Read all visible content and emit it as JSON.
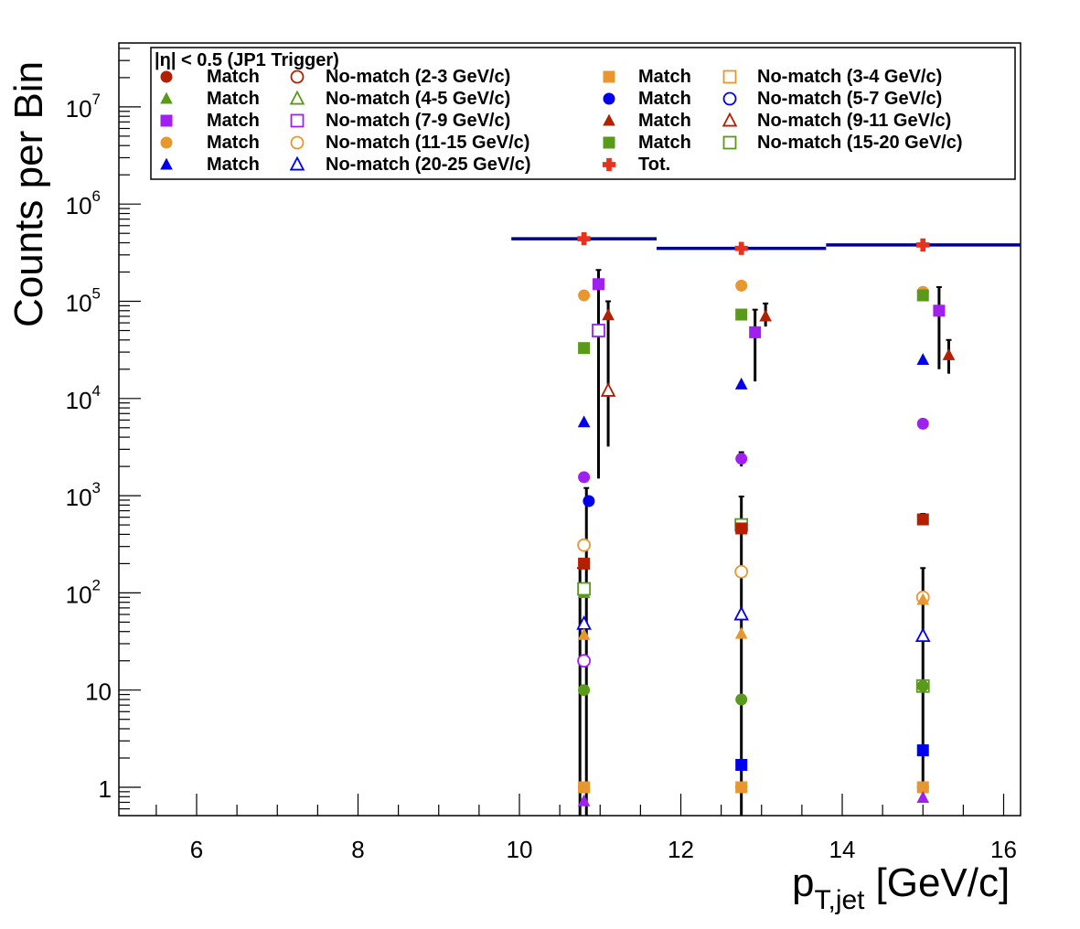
{
  "chart_data": {
    "type": "scatter",
    "title": "",
    "xlabel": "p",
    "xlabel_sub": "T,jet",
    "xlabel_unit": "[GeV/c]",
    "ylabel": "Counts per Bin",
    "xlim": [
      5,
      16.3
    ],
    "ylim": [
      0.5,
      50000000
    ],
    "yscale": "log",
    "x_ticks": [
      6,
      8,
      10,
      12,
      14,
      16
    ],
    "x_tick_labels": [
      "6",
      "8",
      "10",
      "12",
      "14",
      "16"
    ],
    "y_tick_labels": [
      {
        "base": "1",
        "exp": ""
      },
      {
        "base": "10",
        "exp": ""
      },
      {
        "base": "10",
        "exp": "2"
      },
      {
        "base": "10",
        "exp": "3"
      },
      {
        "base": "10",
        "exp": "4"
      },
      {
        "base": "10",
        "exp": "5"
      },
      {
        "base": "10",
        "exp": "6"
      },
      {
        "base": "10",
        "exp": "7"
      }
    ],
    "legend_header": "|η| < 0.5 (JP1 Trigger)",
    "legend_placement": "top",
    "total_hist": {
      "color": "#00008b",
      "bins": [
        {
          "x0": 9.9,
          "x1": 11.7,
          "y": 440000
        },
        {
          "x0": 11.7,
          "x1": 13.8,
          "y": 350000
        },
        {
          "x0": 13.8,
          "x1": 16.3,
          "y": 380000
        }
      ]
    },
    "series": [
      {
        "name": "Match",
        "marker": "circle",
        "filled": true,
        "color": "#b22000",
        "points": [
          {
            "x": 10.8,
            "y": 1
          },
          {
            "x": 12.75,
            "y": 1
          },
          {
            "x": 15.0,
            "y": 1
          }
        ]
      },
      {
        "name": "No-match (2-3 GeV/c)",
        "marker": "circle",
        "filled": false,
        "color": "#b22000",
        "points": []
      },
      {
        "name": "Match",
        "marker": "square",
        "filled": true,
        "color": "#e8962e",
        "points": [
          {
            "x": 10.8,
            "y": 1
          },
          {
            "x": 12.75,
            "y": 1
          },
          {
            "x": 15.0,
            "y": 1
          }
        ]
      },
      {
        "name": "No-match (3-4 GeV/c)",
        "marker": "square",
        "filled": false,
        "color": "#e8962e",
        "points": []
      },
      {
        "name": "Match",
        "marker": "triangle",
        "filled": true,
        "color": "#5a9a1a",
        "points": [
          {
            "x": 10.8,
            "y": 100
          }
        ]
      },
      {
        "name": "No-match (4-5 GeV/c)",
        "marker": "triangle",
        "filled": false,
        "color": "#5a9a1a",
        "points": []
      },
      {
        "name": "Match",
        "marker": "circle",
        "filled": true,
        "color": "#0000ee",
        "points": [
          {
            "x": 10.86,
            "y": 880
          }
        ]
      },
      {
        "name": "No-match (5-7 GeV/c)",
        "marker": "circle",
        "filled": false,
        "color": "#0000ee",
        "points": []
      },
      {
        "name": "Match",
        "marker": "square",
        "filled": true,
        "color": "#a020f0",
        "points": [
          {
            "x": 10.98,
            "y": 150000
          },
          {
            "x": 12.92,
            "y": 48000
          },
          {
            "x": 15.2,
            "y": 80000
          }
        ]
      },
      {
        "name": "No-match (7-9 GeV/c)",
        "marker": "square",
        "filled": false,
        "color": "#a020f0",
        "points": [
          {
            "x": 10.98,
            "y": 50000
          }
        ]
      },
      {
        "name": "Match",
        "marker": "triangle",
        "filled": true,
        "color": "#b22000",
        "points": [
          {
            "x": 11.1,
            "y": 72000
          },
          {
            "x": 13.05,
            "y": 70000
          },
          {
            "x": 15.32,
            "y": 28000
          }
        ]
      },
      {
        "name": "No-match (9-11 GeV/c)",
        "marker": "triangle",
        "filled": false,
        "color": "#b22000",
        "points": [
          {
            "x": 11.1,
            "y": 12000
          }
        ]
      },
      {
        "name": "Match",
        "marker": "circle",
        "filled": true,
        "color": "#e8962e",
        "points": [
          {
            "x": 10.8,
            "y": 115000
          },
          {
            "x": 12.75,
            "y": 145000
          },
          {
            "x": 15.0,
            "y": 125000
          }
        ]
      },
      {
        "name": "No-match (11-15 GeV/c)",
        "marker": "circle",
        "filled": false,
        "color": "#e8962e",
        "points": [
          {
            "x": 10.8,
            "y": 310
          },
          {
            "x": 12.75,
            "y": 165
          },
          {
            "x": 15.0,
            "y": 90
          }
        ]
      },
      {
        "name": "Match",
        "marker": "square",
        "filled": true,
        "color": "#5a9a1a",
        "points": [
          {
            "x": 10.8,
            "y": 33000
          },
          {
            "x": 12.75,
            "y": 73000
          },
          {
            "x": 15.0,
            "y": 115000
          }
        ]
      },
      {
        "name": "No-match (15-20 GeV/c)",
        "marker": "square",
        "filled": false,
        "color": "#5a9a1a",
        "points": [
          {
            "x": 10.8,
            "y": 110
          },
          {
            "x": 12.75,
            "y": 500
          },
          {
            "x": 15.0,
            "y": 11
          }
        ]
      },
      {
        "name": "Match",
        "marker": "triangle",
        "filled": true,
        "color": "#0000ee",
        "points": [
          {
            "x": 10.8,
            "y": 5700
          },
          {
            "x": 12.75,
            "y": 14000
          },
          {
            "x": 15.0,
            "y": 25000
          }
        ]
      },
      {
        "name": "No-match (20-25 GeV/c)",
        "marker": "triangle",
        "filled": false,
        "color": "#0000ee",
        "points": [
          {
            "x": 10.8,
            "y": 48
          },
          {
            "x": 12.75,
            "y": 60
          },
          {
            "x": 15.0,
            "y": 36
          }
        ]
      },
      {
        "name": "Tot.",
        "marker": "cross",
        "filled": true,
        "color": "#e8321e",
        "points": [
          {
            "x": 10.8,
            "y": 440000
          },
          {
            "x": 12.75,
            "y": 350000
          },
          {
            "x": 15.0,
            "y": 380000
          }
        ]
      },
      {
        "name": "",
        "marker": "circle",
        "filled": true,
        "color": "#a020f0",
        "points": [
          {
            "x": 10.8,
            "y": 1550
          },
          {
            "x": 12.75,
            "y": 2400
          },
          {
            "x": 15.0,
            "y": 5500
          }
        ]
      },
      {
        "name": "",
        "marker": "circle",
        "filled": false,
        "color": "#a020f0",
        "points": [
          {
            "x": 10.8,
            "y": 20
          }
        ]
      },
      {
        "name": "",
        "marker": "square",
        "filled": true,
        "color": "#b22000",
        "points": [
          {
            "x": 10.8,
            "y": 200
          },
          {
            "x": 12.75,
            "y": 460
          },
          {
            "x": 15.0,
            "y": 570
          }
        ]
      },
      {
        "name": "",
        "marker": "triangle",
        "filled": true,
        "color": "#e8962e",
        "points": [
          {
            "x": 10.8,
            "y": 37
          },
          {
            "x": 12.75,
            "y": 38
          },
          {
            "x": 15.0,
            "y": 85
          }
        ]
      },
      {
        "name": "",
        "marker": "circle",
        "filled": true,
        "color": "#5a9a1a",
        "points": [
          {
            "x": 10.8,
            "y": 10
          },
          {
            "x": 12.75,
            "y": 8
          },
          {
            "x": 15.0,
            "y": 11
          }
        ]
      },
      {
        "name": "",
        "marker": "triangle",
        "filled": true,
        "color": "#a020f0",
        "points": [
          {
            "x": 10.8,
            "y": 0.72
          },
          {
            "x": 15.0,
            "y": 0.78
          }
        ]
      },
      {
        "name": "",
        "marker": "square",
        "filled": true,
        "color": "#0000ee",
        "points": [
          {
            "x": 12.75,
            "y": 1.7
          },
          {
            "x": 15.0,
            "y": 2.4
          }
        ]
      }
    ],
    "error_bars": [
      {
        "x": 10.75,
        "y0": 0.5,
        "y1": 180
      },
      {
        "x": 10.83,
        "y0": 0.5,
        "y1": 1200
      },
      {
        "x": 10.98,
        "y0": 1500,
        "y1": 210000
      },
      {
        "x": 11.1,
        "y0": 3200,
        "y1": 100000
      },
      {
        "x": 12.75,
        "y0": 0.5,
        "y1": 980
      },
      {
        "x": 12.75,
        "y0": 2000,
        "y1": 2800
      },
      {
        "x": 12.92,
        "y0": 15000,
        "y1": 82000
      },
      {
        "x": 13.05,
        "y0": 55000,
        "y1": 95000
      },
      {
        "x": 15.0,
        "y0": 0.75,
        "y1": 180
      },
      {
        "x": 15.0,
        "y0": 520,
        "y1": 650
      },
      {
        "x": 15.2,
        "y0": 20000,
        "y1": 140000
      },
      {
        "x": 15.32,
        "y0": 18000,
        "y1": 40000
      }
    ]
  }
}
